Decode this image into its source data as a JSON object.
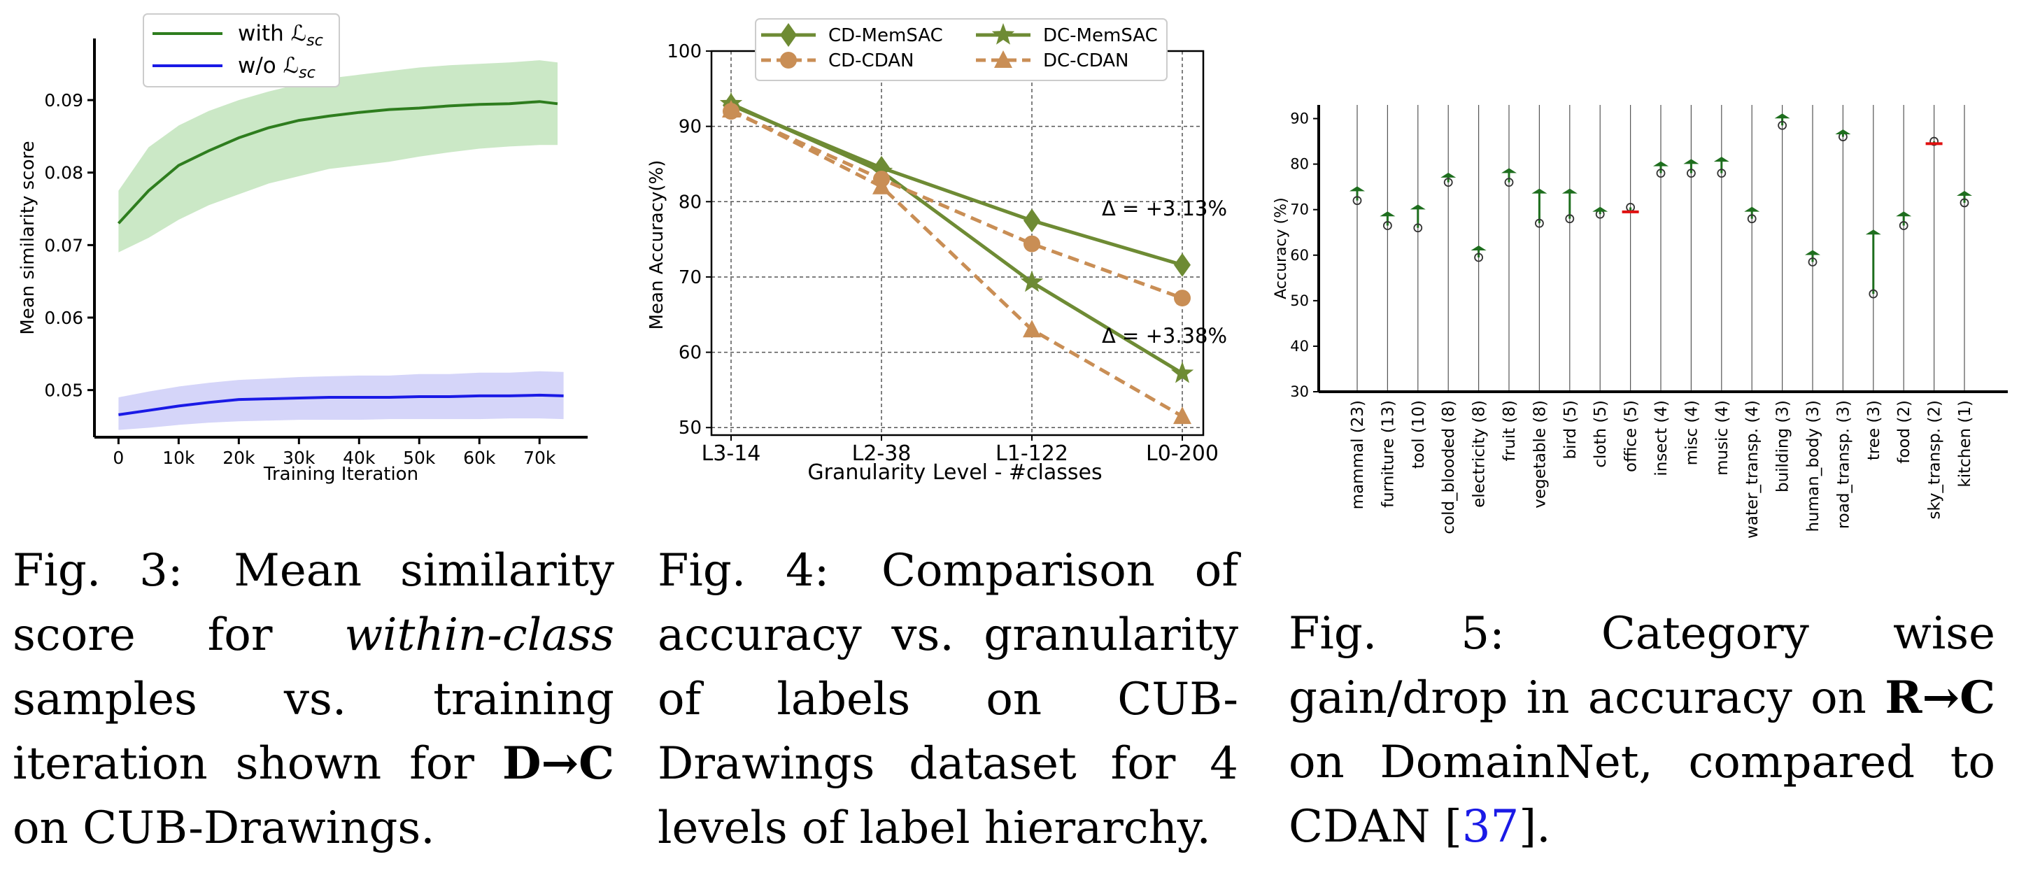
{
  "chart_data": [
    {
      "type": "line",
      "xlabel": "Training Iteration",
      "ylabel": "Mean similarity score",
      "xlim": [
        -4000,
        78000
      ],
      "ylim": [
        0.0435,
        0.0985
      ],
      "xticks": [
        0,
        10000,
        20000,
        30000,
        40000,
        50000,
        60000,
        70000
      ],
      "xtick_labels": [
        "0",
        "10k",
        "20k",
        "30k",
        "40k",
        "50k",
        "60k",
        "70k"
      ],
      "yticks": [
        0.05,
        0.06,
        0.07,
        0.08,
        0.09
      ],
      "ytick_labels": [
        "0.05",
        "0.06",
        "0.07",
        "0.08",
        "0.09"
      ],
      "grid": false,
      "legend_position": "top-center",
      "series": [
        {
          "name": "with ℒsc",
          "color": "#2e7d1e",
          "band_color": "#a9d8a0",
          "x": [
            0,
            5000,
            10000,
            15000,
            20000,
            25000,
            30000,
            35000,
            40000,
            45000,
            50000,
            55000,
            60000,
            65000,
            70000,
            73000
          ],
          "y": [
            0.073,
            0.0775,
            0.081,
            0.083,
            0.0848,
            0.0862,
            0.0872,
            0.0878,
            0.0883,
            0.0887,
            0.0889,
            0.0892,
            0.0894,
            0.0895,
            0.0898,
            0.0895
          ],
          "band_low": [
            0.069,
            0.071,
            0.0735,
            0.0755,
            0.077,
            0.0785,
            0.0795,
            0.0805,
            0.081,
            0.0815,
            0.0822,
            0.0828,
            0.0833,
            0.0836,
            0.0838,
            0.0838
          ],
          "band_high": [
            0.0775,
            0.0835,
            0.0865,
            0.0885,
            0.09,
            0.0912,
            0.0922,
            0.093,
            0.0935,
            0.094,
            0.0945,
            0.0948,
            0.095,
            0.0952,
            0.0955,
            0.0952
          ]
        },
        {
          "name": "w/o ℒsc",
          "color": "#1a1ae6",
          "band_color": "#b9b9f5",
          "x": [
            0,
            5000,
            10000,
            15000,
            20000,
            25000,
            30000,
            35000,
            40000,
            45000,
            50000,
            55000,
            60000,
            65000,
            70000,
            74000
          ],
          "y": [
            0.0466,
            0.0472,
            0.0478,
            0.0483,
            0.0487,
            0.0488,
            0.0489,
            0.049,
            0.049,
            0.049,
            0.0491,
            0.0491,
            0.0492,
            0.0492,
            0.0493,
            0.0492
          ],
          "band_low": [
            0.0445,
            0.0448,
            0.0452,
            0.0455,
            0.0457,
            0.0458,
            0.0459,
            0.0459,
            0.0459,
            0.046,
            0.046,
            0.046,
            0.046,
            0.0461,
            0.0461,
            0.046
          ],
          "band_high": [
            0.049,
            0.0498,
            0.0505,
            0.051,
            0.0514,
            0.0516,
            0.0518,
            0.0519,
            0.052,
            0.052,
            0.0522,
            0.0522,
            0.0524,
            0.0524,
            0.0526,
            0.0525
          ]
        }
      ]
    },
    {
      "type": "line",
      "xlabel": "Granularity Level - #classes",
      "ylabel": "Mean Accuracy(%)",
      "categories": [
        "L3-14",
        "L2-38",
        "L1-122",
        "L0-200"
      ],
      "ylim": [
        49,
        100
      ],
      "yticks": [
        50,
        60,
        70,
        80,
        90,
        100
      ],
      "ytick_labels": [
        "50",
        "60",
        "70",
        "80",
        "90",
        "100"
      ],
      "grid": true,
      "legend_position": "top",
      "series": [
        {
          "name": "CD-MemSAC",
          "color": "#6e8b34",
          "dash": "solid",
          "marker": "diamond",
          "values": [
            92.8,
            84.5,
            77.5,
            71.6
          ]
        },
        {
          "name": "DC-MemSAC",
          "color": "#6e8b34",
          "dash": "solid",
          "marker": "star",
          "values": [
            93.0,
            84.0,
            69.3,
            57.2
          ]
        },
        {
          "name": "CD-CDAN",
          "color": "#c98e55",
          "dash": "dashed",
          "marker": "circle",
          "values": [
            92.0,
            83.0,
            74.4,
            67.2
          ]
        },
        {
          "name": "DC-CDAN",
          "color": "#c98e55",
          "dash": "dashed",
          "marker": "triangle",
          "values": [
            92.2,
            82.0,
            63.0,
            51.5
          ]
        }
      ],
      "annotations": [
        "Δ = +3.13%",
        "Δ = +3.38%"
      ]
    },
    {
      "type": "gain-drop",
      "ylabel": "Accuracy (%)",
      "ylim": [
        30,
        93
      ],
      "yticks": [
        30,
        40,
        50,
        60,
        70,
        80,
        90
      ],
      "ytick_labels": [
        "30",
        "40",
        "50",
        "60",
        "70",
        "80",
        "90"
      ],
      "gain_color": "#1e6e1e",
      "drop_color": "#e01010",
      "categories": [
        "mammal (23)",
        "furniture (13)",
        "tool (10)",
        "cold_blooded (8)",
        "electricity (8)",
        "fruit (8)",
        "vegetable (8)",
        "bird (5)",
        "cloth (5)",
        "office (5)",
        "insect (4)",
        "misc (4)",
        "music (4)",
        "water_transp. (4)",
        "building (3)",
        "human_body (3)",
        "road_transp. (3)",
        "tree (3)",
        "food (2)",
        "sky_transp. (2)",
        "kitchen (1)"
      ],
      "baseline": [
        72.0,
        66.5,
        66.0,
        76.0,
        59.5,
        76.0,
        67.0,
        68.0,
        69.0,
        70.5,
        78.0,
        78.0,
        78.0,
        68.0,
        88.5,
        58.5,
        86.0,
        51.5,
        66.5,
        85.0,
        71.5
      ],
      "ours": [
        74.5,
        69.0,
        70.5,
        77.5,
        61.5,
        78.5,
        74.0,
        74.0,
        70.0,
        69.5,
        80.0,
        80.5,
        81.0,
        70.0,
        90.5,
        60.5,
        87.0,
        65.0,
        69.0,
        84.5,
        73.5
      ]
    }
  ],
  "captions": {
    "fig3": {
      "label": "Fig. 3:",
      "t1": "Mean similarity score for",
      "em": "within-class",
      "t2": "samples vs. training iteration shown for",
      "bold": "D→C",
      "t3": "on CUB-Drawings."
    },
    "fig4": {
      "label": "Fig. 4:",
      "text": "Comparison of accuracy vs. granularity of labels on CUB-Drawings dataset for 4 levels of label hierarchy."
    },
    "fig5": {
      "label": "Fig. 5:",
      "t1": "Category wise gain/drop in accuracy on",
      "bold": "R→C",
      "t2": "on DomainNet, compared to CDAN [",
      "cite": "37",
      "t3": "]."
    }
  }
}
